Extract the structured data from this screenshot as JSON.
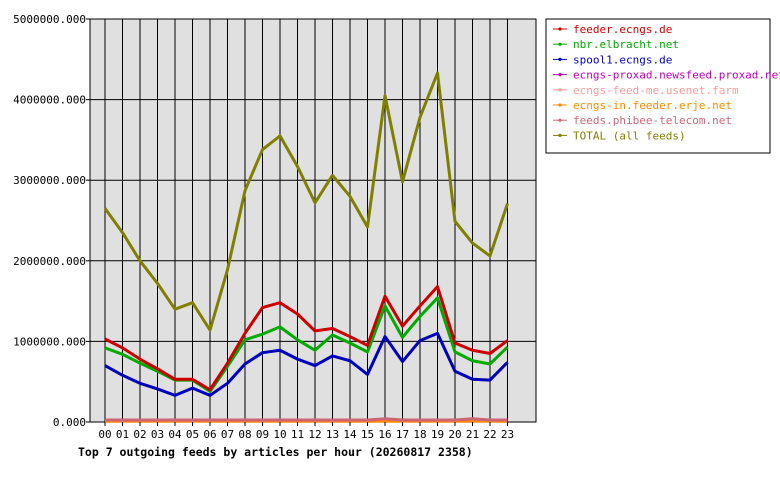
{
  "chart_data": {
    "type": "line",
    "title": "Top 7 outgoing feeds by articles per hour (20260817 2358)",
    "xlabel": "",
    "ylabel": "",
    "ylim": [
      0,
      5000000
    ],
    "yticks": [
      0,
      1000000,
      2000000,
      3000000,
      4000000,
      5000000
    ],
    "ytick_labels": [
      "0.000",
      "1000000.000",
      "2000000.000",
      "3000000.000",
      "4000000.000",
      "5000000.000"
    ],
    "grid": true,
    "legend_placement": "right",
    "categories": [
      "00",
      "01",
      "02",
      "03",
      "04",
      "05",
      "06",
      "07",
      "08",
      "09",
      "10",
      "11",
      "12",
      "13",
      "14",
      "15",
      "16",
      "17",
      "18",
      "19",
      "20",
      "21",
      "22",
      "23"
    ],
    "series": [
      {
        "name": "feeder.ecngs.de",
        "color": "#cc0000",
        "values": [
          1030000,
          920000,
          780000,
          660000,
          530000,
          530000,
          400000,
          730000,
          1100000,
          1420000,
          1480000,
          1340000,
          1130000,
          1160000,
          1060000,
          950000,
          1560000,
          1190000,
          1440000,
          1680000,
          980000,
          890000,
          850000,
          1010000
        ]
      },
      {
        "name": "nbr.elbracht.net",
        "color": "#00aa00",
        "values": [
          920000,
          840000,
          730000,
          630000,
          520000,
          520000,
          380000,
          690000,
          1020000,
          1090000,
          1180000,
          1020000,
          890000,
          1080000,
          980000,
          870000,
          1440000,
          1050000,
          1310000,
          1540000,
          870000,
          760000,
          720000,
          930000
        ]
      },
      {
        "name": "spool1.ecngs.de",
        "color": "#0000bb",
        "values": [
          700000,
          580000,
          480000,
          410000,
          330000,
          420000,
          330000,
          480000,
          720000,
          860000,
          890000,
          780000,
          700000,
          820000,
          760000,
          590000,
          1060000,
          750000,
          1010000,
          1100000,
          630000,
          530000,
          520000,
          740000
        ]
      },
      {
        "name": "ecngs-proxad.newsfeed.proxad.net",
        "color": "#bb00bb",
        "values": [
          20000,
          20000,
          20000,
          20000,
          20000,
          20000,
          20000,
          20000,
          20000,
          20000,
          20000,
          20000,
          20000,
          20000,
          20000,
          20000,
          20000,
          20000,
          20000,
          20000,
          20000,
          20000,
          20000,
          20000
        ]
      },
      {
        "name": "ecngs-feed-me.usenet.farm",
        "color": "#ff9999",
        "values": [
          15000,
          15000,
          15000,
          15000,
          15000,
          15000,
          15000,
          15000,
          15000,
          15000,
          15000,
          15000,
          15000,
          15000,
          15000,
          15000,
          30000,
          15000,
          15000,
          15000,
          15000,
          30000,
          15000,
          15000
        ]
      },
      {
        "name": "ecngs-in.feeder.erje.net",
        "color": "#ff8800",
        "values": [
          10000,
          10000,
          10000,
          10000,
          10000,
          10000,
          10000,
          10000,
          10000,
          10000,
          10000,
          10000,
          10000,
          10000,
          10000,
          10000,
          10000,
          10000,
          10000,
          10000,
          10000,
          10000,
          10000,
          10000
        ]
      },
      {
        "name": "feeds.phibee-telecom.net",
        "color": "#cc6677",
        "values": [
          25000,
          25000,
          25000,
          25000,
          25000,
          25000,
          25000,
          25000,
          25000,
          25000,
          25000,
          25000,
          25000,
          25000,
          25000,
          25000,
          40000,
          25000,
          25000,
          25000,
          25000,
          40000,
          25000,
          25000
        ]
      },
      {
        "name": "TOTAL (all feeds)",
        "color": "#808000",
        "values": [
          2650000,
          2350000,
          2000000,
          1720000,
          1400000,
          1480000,
          1140000,
          1890000,
          2870000,
          3380000,
          3550000,
          3170000,
          2720000,
          3060000,
          2800000,
          2420000,
          4050000,
          2980000,
          3780000,
          4330000,
          2490000,
          2220000,
          2060000,
          2710000
        ]
      }
    ]
  }
}
